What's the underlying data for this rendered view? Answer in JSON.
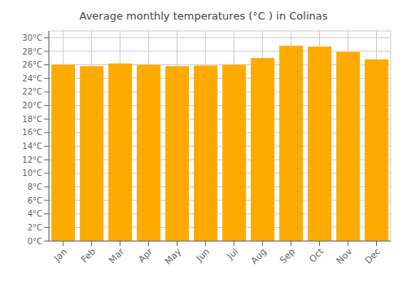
{
  "chart_data": {
    "type": "bar",
    "title": "Average monthly temperatures (°C ) in Colinas",
    "categories": [
      "Jan",
      "Feb",
      "Mar",
      "Apr",
      "May",
      "Jun",
      "Jul",
      "Aug",
      "Sep",
      "Oct",
      "Nov",
      "Dec"
    ],
    "values": [
      26.0,
      25.8,
      26.2,
      26.0,
      25.8,
      25.9,
      26.0,
      27.0,
      28.8,
      28.7,
      27.9,
      26.8
    ],
    "color": "#FFAA00",
    "ylim": [
      0,
      31
    ],
    "yticks": [
      {
        "value": 0,
        "label": "0°C"
      },
      {
        "value": 2,
        "label": "2°C"
      },
      {
        "value": 4,
        "label": "4°C"
      },
      {
        "value": 6,
        "label": "6°C"
      },
      {
        "value": 8,
        "label": "8°C"
      },
      {
        "value": 10,
        "label": "10°C"
      },
      {
        "value": 12,
        "label": "12°C"
      },
      {
        "value": 14,
        "label": "14°C"
      },
      {
        "value": 16,
        "label": "16°C"
      },
      {
        "value": 18,
        "label": "18°C"
      },
      {
        "value": 20,
        "label": "20°C"
      },
      {
        "value": 22,
        "label": "22°C"
      },
      {
        "value": 24,
        "label": "24°C"
      },
      {
        "value": 26,
        "label": "26°C"
      },
      {
        "value": 28,
        "label": "28°C"
      },
      {
        "value": 30,
        "label": "30°C"
      }
    ],
    "grid": true
  }
}
